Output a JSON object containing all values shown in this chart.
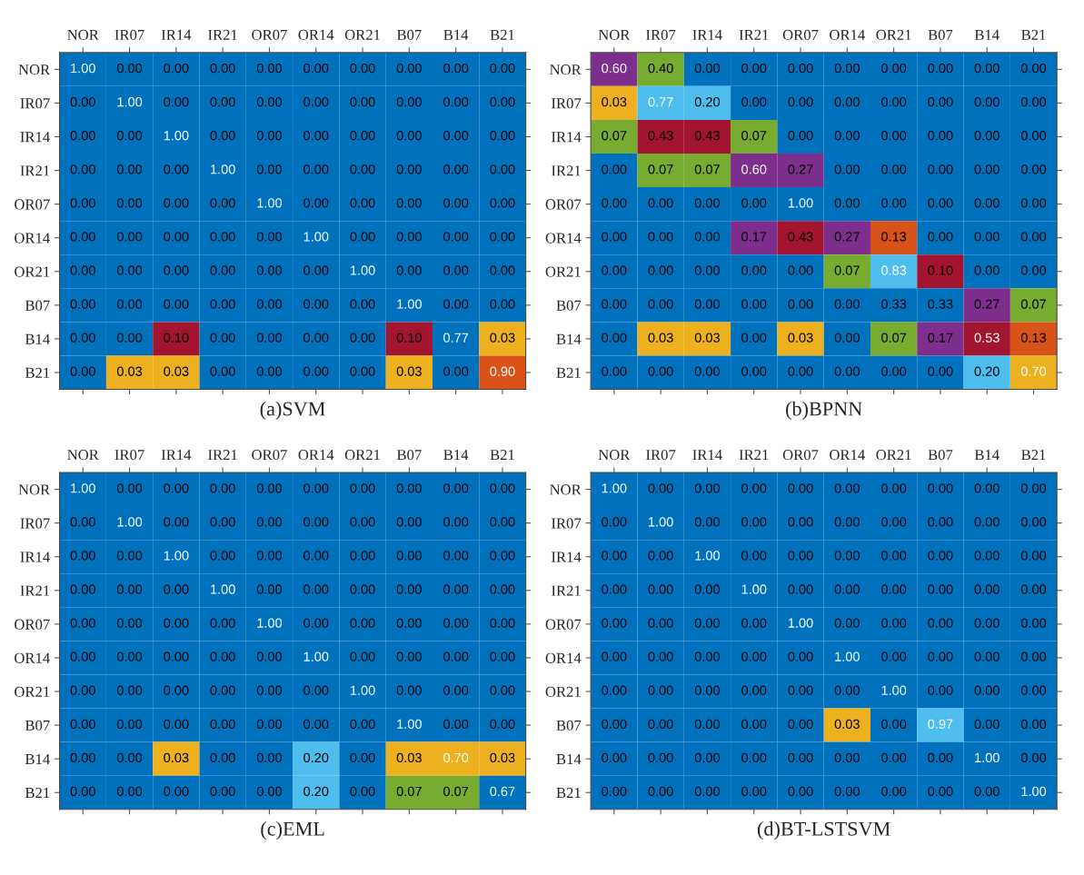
{
  "chart_data": [
    {
      "type": "heatmap",
      "title": "(a)SVM",
      "data_labels": true,
      "categories": [
        "NOR",
        "IR07",
        "IR14",
        "IR21",
        "OR07",
        "OR14",
        "OR21",
        "B07",
        "B14",
        "B21"
      ],
      "y_categories": [
        "NOR",
        "IR07",
        "IR14",
        "IR21",
        "OR07",
        "OR14",
        "OR21",
        "B07",
        "B14",
        "B21"
      ],
      "cells": [
        [
          1.0,
          0.0,
          0.0,
          0.0,
          0.0,
          0.0,
          0.0,
          0.0,
          0.0,
          0.0
        ],
        [
          0.0,
          1.0,
          0.0,
          0.0,
          0.0,
          0.0,
          0.0,
          0.0,
          0.0,
          0.0
        ],
        [
          0.0,
          0.0,
          1.0,
          0.0,
          0.0,
          0.0,
          0.0,
          0.0,
          0.0,
          0.0
        ],
        [
          0.0,
          0.0,
          0.0,
          1.0,
          0.0,
          0.0,
          0.0,
          0.0,
          0.0,
          0.0
        ],
        [
          0.0,
          0.0,
          0.0,
          0.0,
          1.0,
          0.0,
          0.0,
          0.0,
          0.0,
          0.0
        ],
        [
          0.0,
          0.0,
          0.0,
          0.0,
          0.0,
          1.0,
          0.0,
          0.0,
          0.0,
          0.0
        ],
        [
          0.0,
          0.0,
          0.0,
          0.0,
          0.0,
          0.0,
          1.0,
          0.0,
          0.0,
          0.0
        ],
        [
          0.0,
          0.0,
          0.0,
          0.0,
          0.0,
          0.0,
          0.0,
          1.0,
          0.0,
          0.0
        ],
        [
          0.0,
          0.0,
          0.1,
          0.0,
          0.0,
          0.0,
          0.0,
          0.1,
          0.77,
          0.03
        ],
        [
          0.0,
          0.03,
          0.03,
          0.0,
          0.0,
          0.0,
          0.0,
          0.03,
          0.0,
          0.9
        ]
      ],
      "cell_labels": [
        [
          "1.00",
          "0.00",
          "0.00",
          "0.00",
          "0.00",
          "0.00",
          "0.00",
          "0.00",
          "0.00",
          "0.00"
        ],
        [
          "0.00",
          "1.00",
          "0.00",
          "0.00",
          "0.00",
          "0.00",
          "0.00",
          "0.00",
          "0.00",
          "0.00"
        ],
        [
          "0.00",
          "0.00",
          "1.00",
          "0.00",
          "0.00",
          "0.00",
          "0.00",
          "0.00",
          "0.00",
          "0.00"
        ],
        [
          "0.00",
          "0.00",
          "0.00",
          "1.00",
          "0.00",
          "0.00",
          "0.00",
          "0.00",
          "0.00",
          "0.00"
        ],
        [
          "0.00",
          "0.00",
          "0.00",
          "0.00",
          "1.00",
          "0.00",
          "0.00",
          "0.00",
          "0.00",
          "0.00"
        ],
        [
          "0.00",
          "0.00",
          "0.00",
          "0.00",
          "0.00",
          "1.00",
          "0.00",
          "0.00",
          "0.00",
          "0.00"
        ],
        [
          "0.00",
          "0.00",
          "0.00",
          "0.00",
          "0.00",
          "0.00",
          "1.00",
          "0.00",
          "0.00",
          "0.00"
        ],
        [
          "0.00",
          "0.00",
          "0.00",
          "0.00",
          "0.00",
          "0.00",
          "0.00",
          "1.00",
          "0.00",
          "0.00"
        ],
        [
          "0.00",
          "0.00",
          "0.10",
          "0.00",
          "0.00",
          "0.00",
          "0.00",
          "0.10",
          "0.77",
          "0.03"
        ],
        [
          "0.00",
          "0.03",
          "0.03",
          "0.00",
          "0.00",
          "0.00",
          "0.00",
          "0.03",
          "0.00",
          "0.90"
        ]
      ],
      "colors": [
        [
          "#0072bd",
          "#0072bd",
          "#0072bd",
          "#0072bd",
          "#0072bd",
          "#0072bd",
          "#0072bd",
          "#0072bd",
          "#0072bd",
          "#0072bd"
        ],
        [
          "#0072bd",
          "#0072bd",
          "#0072bd",
          "#0072bd",
          "#0072bd",
          "#0072bd",
          "#0072bd",
          "#0072bd",
          "#0072bd",
          "#0072bd"
        ],
        [
          "#0072bd",
          "#0072bd",
          "#0072bd",
          "#0072bd",
          "#0072bd",
          "#0072bd",
          "#0072bd",
          "#0072bd",
          "#0072bd",
          "#0072bd"
        ],
        [
          "#0072bd",
          "#0072bd",
          "#0072bd",
          "#0072bd",
          "#0072bd",
          "#0072bd",
          "#0072bd",
          "#0072bd",
          "#0072bd",
          "#0072bd"
        ],
        [
          "#0072bd",
          "#0072bd",
          "#0072bd",
          "#0072bd",
          "#0072bd",
          "#0072bd",
          "#0072bd",
          "#0072bd",
          "#0072bd",
          "#0072bd"
        ],
        [
          "#0072bd",
          "#0072bd",
          "#0072bd",
          "#0072bd",
          "#0072bd",
          "#0072bd",
          "#0072bd",
          "#0072bd",
          "#0072bd",
          "#0072bd"
        ],
        [
          "#0072bd",
          "#0072bd",
          "#0072bd",
          "#0072bd",
          "#0072bd",
          "#0072bd",
          "#0072bd",
          "#0072bd",
          "#0072bd",
          "#0072bd"
        ],
        [
          "#0072bd",
          "#0072bd",
          "#0072bd",
          "#0072bd",
          "#0072bd",
          "#0072bd",
          "#0072bd",
          "#0072bd",
          "#0072bd",
          "#0072bd"
        ],
        [
          "#0072bd",
          "#0072bd",
          "#a2142f",
          "#0072bd",
          "#0072bd",
          "#0072bd",
          "#0072bd",
          "#a2142f",
          "#0072bd",
          "#edb120"
        ],
        [
          "#0072bd",
          "#edb120",
          "#edb120",
          "#0072bd",
          "#0072bd",
          "#0072bd",
          "#0072bd",
          "#edb120",
          "#0072bd",
          "#d95319"
        ]
      ]
    },
    {
      "type": "heatmap",
      "title": "(b)BPNN",
      "data_labels": true,
      "categories": [
        "NOR",
        "IR07",
        "IR14",
        "IR21",
        "OR07",
        "OR14",
        "OR21",
        "B07",
        "B14",
        "B21"
      ],
      "y_categories": [
        "NOR",
        "IR07",
        "IR14",
        "IR21",
        "OR07",
        "OR14",
        "OR21",
        "B07",
        "B14",
        "B21"
      ],
      "cells": [
        [
          0.6,
          0.4,
          0.0,
          0.0,
          0.0,
          0.0,
          0.0,
          0.0,
          0.0,
          0.0
        ],
        [
          0.03,
          0.77,
          0.2,
          0.0,
          0.0,
          0.0,
          0.0,
          0.0,
          0.0,
          0.0
        ],
        [
          0.07,
          0.43,
          0.43,
          0.07,
          0.0,
          0.0,
          0.0,
          0.0,
          0.0,
          0.0
        ],
        [
          0.0,
          0.07,
          0.07,
          0.6,
          0.27,
          0.0,
          0.0,
          0.0,
          0.0,
          0.0
        ],
        [
          0.0,
          0.0,
          0.0,
          0.0,
          1.0,
          0.0,
          0.0,
          0.0,
          0.0,
          0.0
        ],
        [
          0.0,
          0.0,
          0.0,
          0.17,
          0.43,
          0.27,
          0.13,
          0.0,
          0.0,
          0.0
        ],
        [
          0.0,
          0.0,
          0.0,
          0.0,
          0.0,
          0.07,
          0.83,
          0.1,
          0.0,
          0.0
        ],
        [
          0.0,
          0.0,
          0.0,
          0.0,
          0.0,
          0.0,
          0.33,
          0.33,
          0.27,
          0.07
        ],
        [
          0.0,
          0.03,
          0.03,
          0.0,
          0.03,
          0.0,
          0.07,
          0.17,
          0.53,
          0.13
        ],
        [
          0.0,
          0.0,
          0.0,
          0.0,
          0.0,
          0.0,
          0.0,
          0.0,
          0.2,
          0.7
        ]
      ],
      "cell_labels": [
        [
          "0.60",
          "0.40",
          "0.00",
          "0.00",
          "0.00",
          "0.00",
          "0.00",
          "0.00",
          "0.00",
          "0.00"
        ],
        [
          "0.03",
          "0.77",
          "0.20",
          "0.00",
          "0.00",
          "0.00",
          "0.00",
          "0.00",
          "0.00",
          "0.00"
        ],
        [
          "0.07",
          "0.43",
          "0.43",
          "0.07",
          "0.00",
          "0.00",
          "0.00",
          "0.00",
          "0.00",
          "0.00"
        ],
        [
          "0.00",
          "0.07",
          "0.07",
          "0.60",
          "0.27",
          "0.00",
          "0.00",
          "0.00",
          "0.00",
          "0.00"
        ],
        [
          "0.00",
          "0.00",
          "0.00",
          "0.00",
          "1.00",
          "0.00",
          "0.00",
          "0.00",
          "0.00",
          "0.00"
        ],
        [
          "0.00",
          "0.00",
          "0.00",
          "0.17",
          "0.43",
          "0.27",
          "0.13",
          "0.00",
          "0.00",
          "0.00"
        ],
        [
          "0.00",
          "0.00",
          "0.00",
          "0.00",
          "0.00",
          "0.07",
          "0.83",
          "0.10",
          "0.00",
          "0.00"
        ],
        [
          "0.00",
          "0.00",
          "0.00",
          "0.00",
          "0.00",
          "0.00",
          "0.33",
          "0.33",
          "0.27",
          "0.07"
        ],
        [
          "0.00",
          "0.03",
          "0.03",
          "0.00",
          "0.03",
          "0.00",
          "0.07",
          "0.17",
          "0.53",
          "0.13"
        ],
        [
          "0.00",
          "0.00",
          "0.00",
          "0.00",
          "0.00",
          "0.00",
          "0.00",
          "0.00",
          "0.20",
          "0.70"
        ]
      ],
      "colors": [
        [
          "#7e2f8e",
          "#77ac30",
          "#0072bd",
          "#0072bd",
          "#0072bd",
          "#0072bd",
          "#0072bd",
          "#0072bd",
          "#0072bd",
          "#0072bd"
        ],
        [
          "#edb120",
          "#4dbeee",
          "#4dbeee",
          "#0072bd",
          "#0072bd",
          "#0072bd",
          "#0072bd",
          "#0072bd",
          "#0072bd",
          "#0072bd"
        ],
        [
          "#77ac30",
          "#a2142f",
          "#a2142f",
          "#77ac30",
          "#0072bd",
          "#0072bd",
          "#0072bd",
          "#0072bd",
          "#0072bd",
          "#0072bd"
        ],
        [
          "#0072bd",
          "#77ac30",
          "#77ac30",
          "#7e2f8e",
          "#7e2f8e",
          "#0072bd",
          "#0072bd",
          "#0072bd",
          "#0072bd",
          "#0072bd"
        ],
        [
          "#0072bd",
          "#0072bd",
          "#0072bd",
          "#0072bd",
          "#0072bd",
          "#0072bd",
          "#0072bd",
          "#0072bd",
          "#0072bd",
          "#0072bd"
        ],
        [
          "#0072bd",
          "#0072bd",
          "#0072bd",
          "#7e2f8e",
          "#a2142f",
          "#7e2f8e",
          "#d95319",
          "#0072bd",
          "#0072bd",
          "#0072bd"
        ],
        [
          "#0072bd",
          "#0072bd",
          "#0072bd",
          "#0072bd",
          "#0072bd",
          "#77ac30",
          "#4dbeee",
          "#a2142f",
          "#0072bd",
          "#0072bd"
        ],
        [
          "#0072bd",
          "#0072bd",
          "#0072bd",
          "#0072bd",
          "#0072bd",
          "#0072bd",
          "#0072bd",
          "#0072bd",
          "#7e2f8e",
          "#77ac30"
        ],
        [
          "#0072bd",
          "#edb120",
          "#edb120",
          "#0072bd",
          "#edb120",
          "#0072bd",
          "#77ac30",
          "#7e2f8e",
          "#a2142f",
          "#d95319"
        ],
        [
          "#0072bd",
          "#0072bd",
          "#0072bd",
          "#0072bd",
          "#0072bd",
          "#0072bd",
          "#0072bd",
          "#0072bd",
          "#4dbeee",
          "#edb120"
        ]
      ]
    },
    {
      "type": "heatmap",
      "title": "(c)EML",
      "data_labels": true,
      "categories": [
        "NOR",
        "IR07",
        "IR14",
        "IR21",
        "OR07",
        "OR14",
        "OR21",
        "B07",
        "B14",
        "B21"
      ],
      "y_categories": [
        "NOR",
        "IR07",
        "IR14",
        "IR21",
        "OR07",
        "OR14",
        "OR21",
        "B07",
        "B14",
        "B21"
      ],
      "cells": [
        [
          1.0,
          0.0,
          0.0,
          0.0,
          0.0,
          0.0,
          0.0,
          0.0,
          0.0,
          0.0
        ],
        [
          0.0,
          1.0,
          0.0,
          0.0,
          0.0,
          0.0,
          0.0,
          0.0,
          0.0,
          0.0
        ],
        [
          0.0,
          0.0,
          1.0,
          0.0,
          0.0,
          0.0,
          0.0,
          0.0,
          0.0,
          0.0
        ],
        [
          0.0,
          0.0,
          0.0,
          1.0,
          0.0,
          0.0,
          0.0,
          0.0,
          0.0,
          0.0
        ],
        [
          0.0,
          0.0,
          0.0,
          0.0,
          1.0,
          0.0,
          0.0,
          0.0,
          0.0,
          0.0
        ],
        [
          0.0,
          0.0,
          0.0,
          0.0,
          0.0,
          1.0,
          0.0,
          0.0,
          0.0,
          0.0
        ],
        [
          0.0,
          0.0,
          0.0,
          0.0,
          0.0,
          0.0,
          1.0,
          0.0,
          0.0,
          0.0
        ],
        [
          0.0,
          0.0,
          0.0,
          0.0,
          0.0,
          0.0,
          0.0,
          1.0,
          0.0,
          0.0
        ],
        [
          0.0,
          0.0,
          0.03,
          0.0,
          0.0,
          0.2,
          0.0,
          0.03,
          0.7,
          0.03
        ],
        [
          0.0,
          0.0,
          0.0,
          0.0,
          0.0,
          0.2,
          0.0,
          0.07,
          0.07,
          0.67
        ]
      ],
      "cell_labels": [
        [
          "1.00",
          "0.00",
          "0.00",
          "0.00",
          "0.00",
          "0.00",
          "0.00",
          "0.00",
          "0.00",
          "0.00"
        ],
        [
          "0.00",
          "1.00",
          "0.00",
          "0.00",
          "0.00",
          "0.00",
          "0.00",
          "0.00",
          "0.00",
          "0.00"
        ],
        [
          "0.00",
          "0.00",
          "1.00",
          "0.00",
          "0.00",
          "0.00",
          "0.00",
          "0.00",
          "0.00",
          "0.00"
        ],
        [
          "0.00",
          "0.00",
          "0.00",
          "1.00",
          "0.00",
          "0.00",
          "0.00",
          "0.00",
          "0.00",
          "0.00"
        ],
        [
          "0.00",
          "0.00",
          "0.00",
          "0.00",
          "1.00",
          "0.00",
          "0.00",
          "0.00",
          "0.00",
          "0.00"
        ],
        [
          "0.00",
          "0.00",
          "0.00",
          "0.00",
          "0.00",
          "1.00",
          "0.00",
          "0.00",
          "0.00",
          "0.00"
        ],
        [
          "0.00",
          "0.00",
          "0.00",
          "0.00",
          "0.00",
          "0.00",
          "1.00",
          "0.00",
          "0.00",
          "0.00"
        ],
        [
          "0.00",
          "0.00",
          "0.00",
          "0.00",
          "0.00",
          "0.00",
          "0.00",
          "1.00",
          "0.00",
          "0.00"
        ],
        [
          "0.00",
          "0.00",
          "0.03",
          "0.00",
          "0.00",
          "0.20",
          "0.00",
          "0.03",
          "0.70",
          "0.03"
        ],
        [
          "0.00",
          "0.00",
          "0.00",
          "0.00",
          "0.00",
          "0.20",
          "0.00",
          "0.07",
          "0.07",
          "0.67"
        ]
      ],
      "colors": [
        [
          "#0072bd",
          "#0072bd",
          "#0072bd",
          "#0072bd",
          "#0072bd",
          "#0072bd",
          "#0072bd",
          "#0072bd",
          "#0072bd",
          "#0072bd"
        ],
        [
          "#0072bd",
          "#0072bd",
          "#0072bd",
          "#0072bd",
          "#0072bd",
          "#0072bd",
          "#0072bd",
          "#0072bd",
          "#0072bd",
          "#0072bd"
        ],
        [
          "#0072bd",
          "#0072bd",
          "#0072bd",
          "#0072bd",
          "#0072bd",
          "#0072bd",
          "#0072bd",
          "#0072bd",
          "#0072bd",
          "#0072bd"
        ],
        [
          "#0072bd",
          "#0072bd",
          "#0072bd",
          "#0072bd",
          "#0072bd",
          "#0072bd",
          "#0072bd",
          "#0072bd",
          "#0072bd",
          "#0072bd"
        ],
        [
          "#0072bd",
          "#0072bd",
          "#0072bd",
          "#0072bd",
          "#0072bd",
          "#0072bd",
          "#0072bd",
          "#0072bd",
          "#0072bd",
          "#0072bd"
        ],
        [
          "#0072bd",
          "#0072bd",
          "#0072bd",
          "#0072bd",
          "#0072bd",
          "#0072bd",
          "#0072bd",
          "#0072bd",
          "#0072bd",
          "#0072bd"
        ],
        [
          "#0072bd",
          "#0072bd",
          "#0072bd",
          "#0072bd",
          "#0072bd",
          "#0072bd",
          "#0072bd",
          "#0072bd",
          "#0072bd",
          "#0072bd"
        ],
        [
          "#0072bd",
          "#0072bd",
          "#0072bd",
          "#0072bd",
          "#0072bd",
          "#0072bd",
          "#0072bd",
          "#0072bd",
          "#0072bd",
          "#0072bd"
        ],
        [
          "#0072bd",
          "#0072bd",
          "#edb120",
          "#0072bd",
          "#0072bd",
          "#4dbeee",
          "#0072bd",
          "#edb120",
          "#edb120",
          "#edb120"
        ],
        [
          "#0072bd",
          "#0072bd",
          "#0072bd",
          "#0072bd",
          "#0072bd",
          "#4dbeee",
          "#0072bd",
          "#77ac30",
          "#77ac30",
          "#0072bd"
        ]
      ]
    },
    {
      "type": "heatmap",
      "title": "(d)BT-LSTSVM",
      "data_labels": true,
      "categories": [
        "NOR",
        "IR07",
        "IR14",
        "IR21",
        "OR07",
        "OR14",
        "OR21",
        "B07",
        "B14",
        "B21"
      ],
      "y_categories": [
        "NOR",
        "IR07",
        "IR14",
        "IR21",
        "OR07",
        "OR14",
        "OR21",
        "B07",
        "B14",
        "B21"
      ],
      "cells": [
        [
          1.0,
          0.0,
          0.0,
          0.0,
          0.0,
          0.0,
          0.0,
          0.0,
          0.0,
          0.0
        ],
        [
          0.0,
          1.0,
          0.0,
          0.0,
          0.0,
          0.0,
          0.0,
          0.0,
          0.0,
          0.0
        ],
        [
          0.0,
          0.0,
          1.0,
          0.0,
          0.0,
          0.0,
          0.0,
          0.0,
          0.0,
          0.0
        ],
        [
          0.0,
          0.0,
          0.0,
          1.0,
          0.0,
          0.0,
          0.0,
          0.0,
          0.0,
          0.0
        ],
        [
          0.0,
          0.0,
          0.0,
          0.0,
          1.0,
          0.0,
          0.0,
          0.0,
          0.0,
          0.0
        ],
        [
          0.0,
          0.0,
          0.0,
          0.0,
          0.0,
          1.0,
          0.0,
          0.0,
          0.0,
          0.0
        ],
        [
          0.0,
          0.0,
          0.0,
          0.0,
          0.0,
          0.0,
          1.0,
          0.0,
          0.0,
          0.0
        ],
        [
          0.0,
          0.0,
          0.0,
          0.0,
          0.0,
          0.03,
          0.0,
          0.97,
          0.0,
          0.0
        ],
        [
          0.0,
          0.0,
          0.0,
          0.0,
          0.0,
          0.0,
          0.0,
          0.0,
          1.0,
          0.0
        ],
        [
          0.0,
          0.0,
          0.0,
          0.0,
          0.0,
          0.0,
          0.0,
          0.0,
          0.0,
          1.0
        ]
      ],
      "cell_labels": [
        [
          "1.00",
          "0.00",
          "0.00",
          "0.00",
          "0.00",
          "0.00",
          "0.00",
          "0.00",
          "0.00",
          "0.00"
        ],
        [
          "0.00",
          "1.00",
          "0.00",
          "0.00",
          "0.00",
          "0.00",
          "0.00",
          "0.00",
          "0.00",
          "0.00"
        ],
        [
          "0.00",
          "0.00",
          "1.00",
          "0.00",
          "0.00",
          "0.00",
          "0.00",
          "0.00",
          "0.00",
          "0.00"
        ],
        [
          "0.00",
          "0.00",
          "0.00",
          "1.00",
          "0.00",
          "0.00",
          "0.00",
          "0.00",
          "0.00",
          "0.00"
        ],
        [
          "0.00",
          "0.00",
          "0.00",
          "0.00",
          "1.00",
          "0.00",
          "0.00",
          "0.00",
          "0.00",
          "0.00"
        ],
        [
          "0.00",
          "0.00",
          "0.00",
          "0.00",
          "0.00",
          "1.00",
          "0.00",
          "0.00",
          "0.00",
          "0.00"
        ],
        [
          "0.00",
          "0.00",
          "0.00",
          "0.00",
          "0.00",
          "0.00",
          "1.00",
          "0.00",
          "0.00",
          "0.00"
        ],
        [
          "0.00",
          "0.00",
          "0.00",
          "0.00",
          "0.00",
          "0.03",
          "0.00",
          "0.97",
          "0.00",
          "0.00"
        ],
        [
          "0.00",
          "0.00",
          "0.00",
          "0.00",
          "0.00",
          "0.00",
          "0.00",
          "0.00",
          "1.00",
          "0.00"
        ],
        [
          "0.00",
          "0.00",
          "0.00",
          "0.00",
          "0.00",
          "0.00",
          "0.00",
          "0.00",
          "0.00",
          "1.00"
        ]
      ],
      "colors": [
        [
          "#0072bd",
          "#0072bd",
          "#0072bd",
          "#0072bd",
          "#0072bd",
          "#0072bd",
          "#0072bd",
          "#0072bd",
          "#0072bd",
          "#0072bd"
        ],
        [
          "#0072bd",
          "#0072bd",
          "#0072bd",
          "#0072bd",
          "#0072bd",
          "#0072bd",
          "#0072bd",
          "#0072bd",
          "#0072bd",
          "#0072bd"
        ],
        [
          "#0072bd",
          "#0072bd",
          "#0072bd",
          "#0072bd",
          "#0072bd",
          "#0072bd",
          "#0072bd",
          "#0072bd",
          "#0072bd",
          "#0072bd"
        ],
        [
          "#0072bd",
          "#0072bd",
          "#0072bd",
          "#0072bd",
          "#0072bd",
          "#0072bd",
          "#0072bd",
          "#0072bd",
          "#0072bd",
          "#0072bd"
        ],
        [
          "#0072bd",
          "#0072bd",
          "#0072bd",
          "#0072bd",
          "#0072bd",
          "#0072bd",
          "#0072bd",
          "#0072bd",
          "#0072bd",
          "#0072bd"
        ],
        [
          "#0072bd",
          "#0072bd",
          "#0072bd",
          "#0072bd",
          "#0072bd",
          "#0072bd",
          "#0072bd",
          "#0072bd",
          "#0072bd",
          "#0072bd"
        ],
        [
          "#0072bd",
          "#0072bd",
          "#0072bd",
          "#0072bd",
          "#0072bd",
          "#0072bd",
          "#0072bd",
          "#0072bd",
          "#0072bd",
          "#0072bd"
        ],
        [
          "#0072bd",
          "#0072bd",
          "#0072bd",
          "#0072bd",
          "#0072bd",
          "#edb120",
          "#0072bd",
          "#4dbeee",
          "#0072bd",
          "#0072bd"
        ],
        [
          "#0072bd",
          "#0072bd",
          "#0072bd",
          "#0072bd",
          "#0072bd",
          "#0072bd",
          "#0072bd",
          "#0072bd",
          "#0072bd",
          "#0072bd"
        ],
        [
          "#0072bd",
          "#0072bd",
          "#0072bd",
          "#0072bd",
          "#0072bd",
          "#0072bd",
          "#0072bd",
          "#0072bd",
          "#0072bd",
          "#0072bd"
        ]
      ]
    }
  ]
}
